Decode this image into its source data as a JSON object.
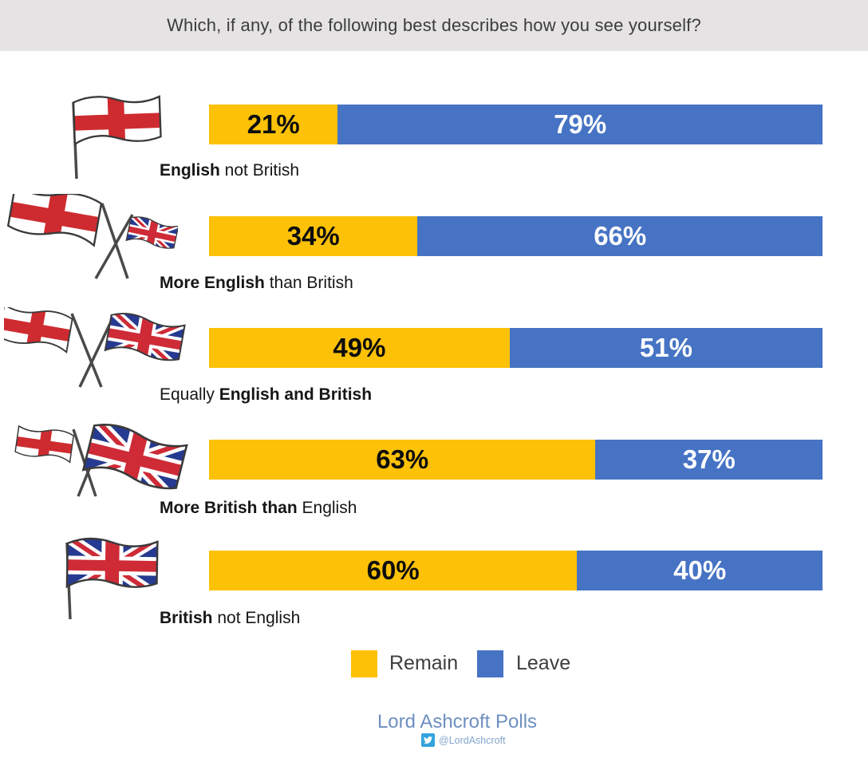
{
  "header": {
    "title": "Which, if any, of the following best describes how you see yourself?"
  },
  "chart_data": {
    "type": "bar",
    "orientation": "horizontal-stacked",
    "title": "Which, if any, of the following best describes how you see yourself?",
    "categories": [
      "English not British",
      "More English than British",
      "Equally English and British",
      "More British than English",
      "British not English"
    ],
    "series": [
      {
        "name": "Remain",
        "values": [
          21,
          34,
          49,
          63,
          60
        ]
      },
      {
        "name": "Leave",
        "values": [
          79,
          66,
          51,
          37,
          40
        ]
      }
    ],
    "xlim": [
      0,
      100
    ],
    "legend_position": "bottom",
    "colors": {
      "remain": "#FDC107",
      "leave": "#4673C4"
    },
    "rows": [
      {
        "flag": "england-flag-icon",
        "label_pre": "",
        "label_bold": "English",
        "label_post": " not British",
        "remain": 21,
        "leave": 79,
        "remain_label": "21%",
        "leave_label": "79%"
      },
      {
        "flag": "england-with-small-union-jack-flags-icon",
        "label_pre": "",
        "label_bold": "More English",
        "label_post": " than British",
        "remain": 34,
        "leave": 66,
        "remain_label": "34%",
        "leave_label": "66%"
      },
      {
        "flag": "england-and-union-jack-crossed-flags-icon",
        "label_pre": "Equally ",
        "label_bold": "English and British",
        "label_post": "",
        "remain": 49,
        "leave": 51,
        "remain_label": "49%",
        "leave_label": "51%"
      },
      {
        "flag": "small-england-with-union-jack-flags-icon",
        "label_pre": "",
        "label_bold": "More British than",
        "label_post": " English",
        "remain": 63,
        "leave": 37,
        "remain_label": "63%",
        "leave_label": "37%"
      },
      {
        "flag": "union-jack-flag-icon",
        "label_pre": "",
        "label_bold": "British",
        "label_post": " not English",
        "remain": 60,
        "leave": 40,
        "remain_label": "60%",
        "leave_label": "40%"
      }
    ],
    "legend": [
      {
        "label": "Remain",
        "color": "#FDC107"
      },
      {
        "label": "Leave",
        "color": "#4673C4"
      }
    ]
  },
  "footer": {
    "source": "Lord Ashcroft Polls",
    "twitter_handle": "@LordAshcroft",
    "twitter_icon": "twitter-bird-icon"
  }
}
